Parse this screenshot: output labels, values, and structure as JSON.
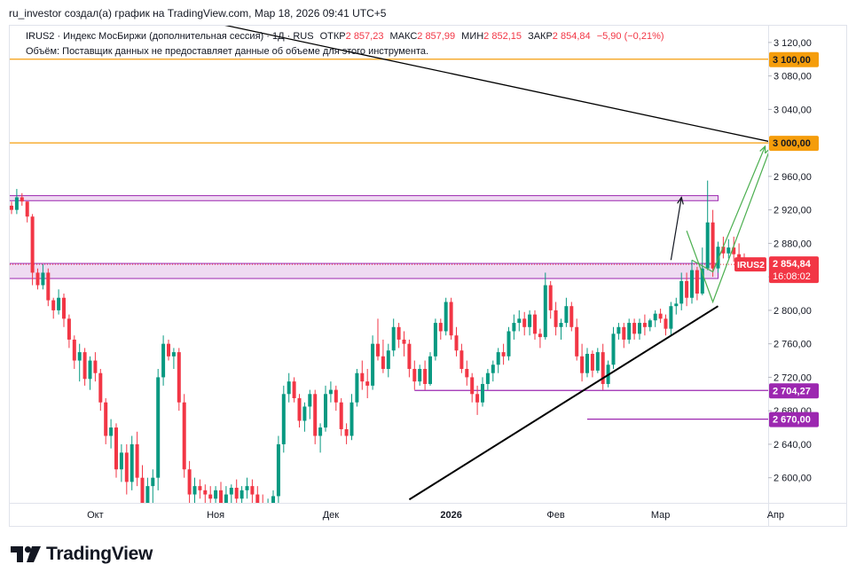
{
  "header": {
    "text": "ru_investor создал(а) график на TradingView.com, Мар 18, 2026 09:41 UTC+5"
  },
  "legend": {
    "line1": "IRUS2 · Индекс МосБиржи (дополнительная сессия) · 1Д · RUS",
    "open_label": "ОТКР",
    "open": "2 857,23",
    "high_label": "МАКС",
    "high": "2 857,99",
    "low_label": "МИН",
    "low": "2 852,15",
    "close_label": "ЗАКР",
    "close": "2 854,84",
    "change": "−5,90 (−0,21%)",
    "line2": "Объём: Поставщик данных не предоставляет данные об объеме для этого инструмента."
  },
  "footer": {
    "brand": "TradingView"
  },
  "colors": {
    "up": "#089981",
    "down": "#f23645",
    "orange": "#f59d0b",
    "purple": "#9c27b0",
    "zone": "#e1bee7",
    "green": "#4caf50"
  },
  "chart_data": {
    "type": "candlestick",
    "symbol": "IRUS2",
    "timeframe": "1Д",
    "ylim": [
      2570,
      3140
    ],
    "y_ticks": [
      "3 120,00",
      "3 080,00",
      "3 040,00",
      "3 000,00",
      "2 960,00",
      "2 920,00",
      "2 880,00",
      "2 840,00",
      "2 800,00",
      "2 760,00",
      "2 720,00",
      "2 680,00",
      "2 640,00",
      "2 600,00"
    ],
    "y_tick_values": [
      3120,
      3080,
      3040,
      3000,
      2960,
      2920,
      2880,
      2840,
      2800,
      2760,
      2720,
      2680,
      2640,
      2600
    ],
    "x_labels": [
      {
        "label": "Окт",
        "idx": 16
      },
      {
        "label": "Ноя",
        "idx": 39
      },
      {
        "label": "Дек",
        "idx": 61
      },
      {
        "label": "2026",
        "idx": 84
      },
      {
        "label": "Фев",
        "idx": 104
      },
      {
        "label": "Мар",
        "idx": 124
      },
      {
        "label": "Апр",
        "idx": 146
      }
    ],
    "price_tags": [
      {
        "label": "3 100,00",
        "value": 3100,
        "kind": "orange"
      },
      {
        "label": "3 000,00",
        "value": 3000,
        "kind": "orange"
      },
      {
        "label": "2 854,84",
        "value": 2854.84,
        "kind": "last",
        "symbol": "IRUS2",
        "countdown": "16:08:02"
      },
      {
        "label": "2 704,27",
        "value": 2704.27,
        "kind": "purple"
      },
      {
        "label": "2 670,00",
        "value": 2670,
        "kind": "purple"
      }
    ],
    "horizontal_levels": [
      3100,
      3000
    ],
    "zones": [
      {
        "top": 2937,
        "bottom": 2931,
        "idx_from": 0,
        "idx_to": 135
      },
      {
        "top": 2856,
        "bottom": 2838,
        "idx_from": 0,
        "idx_to": 135
      }
    ],
    "support_lines": [
      {
        "value": 2704.27,
        "idx_from": 77,
        "idx_to": 149
      },
      {
        "value": 2670,
        "idx_from": 110,
        "idx_to": 149
      }
    ],
    "trendlines": [
      {
        "kind": "resistance",
        "from": {
          "idx": 36,
          "v": 3147
        },
        "to": {
          "idx": 149,
          "v": 2996
        }
      },
      {
        "kind": "support",
        "from": {
          "idx": 76,
          "v": 2574
        },
        "to": {
          "idx": 135,
          "v": 2805
        }
      }
    ],
    "annotation_arrows": [
      {
        "points": [
          [
            126,
            2860
          ],
          [
            128,
            2935
          ]
        ],
        "color": "black"
      },
      {
        "points": [
          [
            129,
            2895
          ],
          [
            134,
            2810
          ],
          [
            145,
            2994
          ]
        ],
        "color": "green"
      },
      {
        "points": [
          [
            130,
            2860
          ],
          [
            134,
            2846
          ],
          [
            144,
            2996
          ]
        ],
        "color": "green"
      }
    ],
    "candles": [
      [
        2925,
        2930,
        2915,
        2920
      ],
      [
        2920,
        2945,
        2915,
        2935
      ],
      [
        2935,
        2940,
        2925,
        2930
      ],
      [
        2930,
        2930,
        2905,
        2912
      ],
      [
        2912,
        2915,
        2830,
        2845
      ],
      [
        2845,
        2850,
        2825,
        2830
      ],
      [
        2830,
        2855,
        2825,
        2845
      ],
      [
        2845,
        2850,
        2805,
        2812
      ],
      [
        2812,
        2815,
        2790,
        2800
      ],
      [
        2800,
        2825,
        2795,
        2815
      ],
      [
        2815,
        2820,
        2780,
        2790
      ],
      [
        2790,
        2795,
        2755,
        2765
      ],
      [
        2765,
        2770,
        2730,
        2740
      ],
      [
        2740,
        2760,
        2715,
        2750
      ],
      [
        2750,
        2755,
        2710,
        2718
      ],
      [
        2718,
        2745,
        2705,
        2740
      ],
      [
        2740,
        2750,
        2715,
        2725
      ],
      [
        2725,
        2730,
        2680,
        2690
      ],
      [
        2690,
        2695,
        2640,
        2650
      ],
      [
        2650,
        2670,
        2635,
        2660
      ],
      [
        2660,
        2665,
        2600,
        2610
      ],
      [
        2610,
        2640,
        2595,
        2630
      ],
      [
        2630,
        2640,
        2580,
        2595
      ],
      [
        2595,
        2650,
        2585,
        2640
      ],
      [
        2640,
        2655,
        2590,
        2600
      ],
      [
        2600,
        2615,
        2560,
        2570
      ],
      [
        2570,
        2600,
        2555,
        2590
      ],
      [
        2590,
        2610,
        2570,
        2600
      ],
      [
        2600,
        2730,
        2585,
        2720
      ],
      [
        2720,
        2770,
        2710,
        2760
      ],
      [
        2760,
        2765,
        2740,
        2745
      ],
      [
        2745,
        2755,
        2730,
        2750
      ],
      [
        2750,
        2755,
        2680,
        2690
      ],
      [
        2690,
        2700,
        2600,
        2610
      ],
      [
        2610,
        2620,
        2570,
        2580
      ],
      [
        2580,
        2600,
        2565,
        2590
      ],
      [
        2590,
        2598,
        2575,
        2585
      ],
      [
        2585,
        2592,
        2570,
        2580
      ],
      [
        2580,
        2590,
        2560,
        2575
      ],
      [
        2575,
        2590,
        2565,
        2585
      ],
      [
        2585,
        2595,
        2560,
        2570
      ],
      [
        2570,
        2590,
        2558,
        2580
      ],
      [
        2580,
        2592,
        2565,
        2588
      ],
      [
        2588,
        2598,
        2570,
        2575
      ],
      [
        2575,
        2590,
        2560,
        2585
      ],
      [
        2585,
        2600,
        2575,
        2590
      ],
      [
        2590,
        2598,
        2570,
        2580
      ],
      [
        2580,
        2590,
        2560,
        2570
      ],
      [
        2570,
        2580,
        2555,
        2565
      ],
      [
        2565,
        2575,
        2555,
        2570
      ],
      [
        2570,
        2585,
        2560,
        2578
      ],
      [
        2578,
        2650,
        2570,
        2640
      ],
      [
        2640,
        2710,
        2630,
        2700
      ],
      [
        2700,
        2725,
        2690,
        2715
      ],
      [
        2715,
        2720,
        2690,
        2695
      ],
      [
        2695,
        2700,
        2660,
        2668
      ],
      [
        2668,
        2690,
        2655,
        2685
      ],
      [
        2685,
        2705,
        2670,
        2700
      ],
      [
        2700,
        2705,
        2640,
        2650
      ],
      [
        2650,
        2665,
        2630,
        2660
      ],
      [
        2660,
        2710,
        2655,
        2700
      ],
      [
        2700,
        2715,
        2690,
        2705
      ],
      [
        2705,
        2710,
        2680,
        2690
      ],
      [
        2690,
        2695,
        2650,
        2658
      ],
      [
        2658,
        2665,
        2640,
        2650
      ],
      [
        2650,
        2700,
        2645,
        2690
      ],
      [
        2690,
        2730,
        2685,
        2725
      ],
      [
        2725,
        2740,
        2705,
        2715
      ],
      [
        2715,
        2730,
        2695,
        2710
      ],
      [
        2710,
        2770,
        2705,
        2760
      ],
      [
        2760,
        2790,
        2740,
        2745
      ],
      [
        2745,
        2765,
        2725,
        2730
      ],
      [
        2730,
        2760,
        2720,
        2752
      ],
      [
        2752,
        2790,
        2745,
        2780
      ],
      [
        2780,
        2785,
        2755,
        2765
      ],
      [
        2765,
        2775,
        2745,
        2760
      ],
      [
        2760,
        2765,
        2720,
        2730
      ],
      [
        2730,
        2740,
        2705,
        2715
      ],
      [
        2715,
        2735,
        2710,
        2730
      ],
      [
        2730,
        2740,
        2705,
        2712
      ],
      [
        2712,
        2750,
        2710,
        2745
      ],
      [
        2745,
        2790,
        2740,
        2785
      ],
      [
        2785,
        2790,
        2765,
        2775
      ],
      [
        2775,
        2815,
        2770,
        2810
      ],
      [
        2810,
        2815,
        2765,
        2770
      ],
      [
        2770,
        2780,
        2745,
        2752
      ],
      [
        2752,
        2760,
        2725,
        2730
      ],
      [
        2730,
        2740,
        2710,
        2720
      ],
      [
        2720,
        2725,
        2690,
        2700
      ],
      [
        2700,
        2710,
        2675,
        2690
      ],
      [
        2690,
        2720,
        2685,
        2712
      ],
      [
        2712,
        2730,
        2705,
        2725
      ],
      [
        2725,
        2740,
        2715,
        2735
      ],
      [
        2735,
        2755,
        2725,
        2750
      ],
      [
        2750,
        2760,
        2735,
        2745
      ],
      [
        2745,
        2780,
        2740,
        2775
      ],
      [
        2775,
        2795,
        2765,
        2785
      ],
      [
        2785,
        2800,
        2775,
        2790
      ],
      [
        2790,
        2798,
        2770,
        2780
      ],
      [
        2780,
        2800,
        2770,
        2795
      ],
      [
        2795,
        2800,
        2765,
        2772
      ],
      [
        2772,
        2778,
        2755,
        2768
      ],
      [
        2768,
        2845,
        2765,
        2830
      ],
      [
        2830,
        2835,
        2790,
        2800
      ],
      [
        2800,
        2810,
        2770,
        2780
      ],
      [
        2780,
        2790,
        2765,
        2785
      ],
      [
        2785,
        2815,
        2780,
        2805
      ],
      [
        2805,
        2810,
        2775,
        2780
      ],
      [
        2780,
        2790,
        2740,
        2745
      ],
      [
        2745,
        2760,
        2715,
        2725
      ],
      [
        2725,
        2755,
        2720,
        2748
      ],
      [
        2748,
        2752,
        2720,
        2728
      ],
      [
        2728,
        2755,
        2725,
        2750
      ],
      [
        2750,
        2760,
        2705,
        2712
      ],
      [
        2712,
        2740,
        2708,
        2735
      ],
      [
        2735,
        2780,
        2730,
        2772
      ],
      [
        2772,
        2785,
        2765,
        2780
      ],
      [
        2780,
        2785,
        2755,
        2765
      ],
      [
        2765,
        2790,
        2760,
        2785
      ],
      [
        2785,
        2790,
        2765,
        2772
      ],
      [
        2772,
        2790,
        2765,
        2785
      ],
      [
        2785,
        2795,
        2770,
        2780
      ],
      [
        2780,
        2790,
        2775,
        2788
      ],
      [
        2788,
        2800,
        2780,
        2796
      ],
      [
        2796,
        2802,
        2785,
        2790
      ],
      [
        2790,
        2795,
        2770,
        2778
      ],
      [
        2778,
        2810,
        2770,
        2805
      ],
      [
        2805,
        2815,
        2795,
        2808
      ],
      [
        2808,
        2845,
        2800,
        2835
      ],
      [
        2835,
        2845,
        2805,
        2815
      ],
      [
        2815,
        2860,
        2808,
        2848
      ],
      [
        2848,
        2852,
        2812,
        2820
      ],
      [
        2820,
        2875,
        2818,
        2850
      ],
      [
        2850,
        2955,
        2848,
        2905
      ],
      [
        2905,
        2920,
        2840,
        2850
      ],
      [
        2850,
        2882,
        2845,
        2876
      ],
      [
        2876,
        2888,
        2862,
        2868
      ],
      [
        2868,
        2885,
        2862,
        2875
      ],
      [
        2875,
        2888,
        2858,
        2867
      ],
      [
        2867,
        2880,
        2858,
        2862
      ],
      [
        2862,
        2868,
        2848,
        2854
      ],
      [
        2857.23,
        2857.99,
        2852.15,
        2854.84
      ]
    ]
  }
}
